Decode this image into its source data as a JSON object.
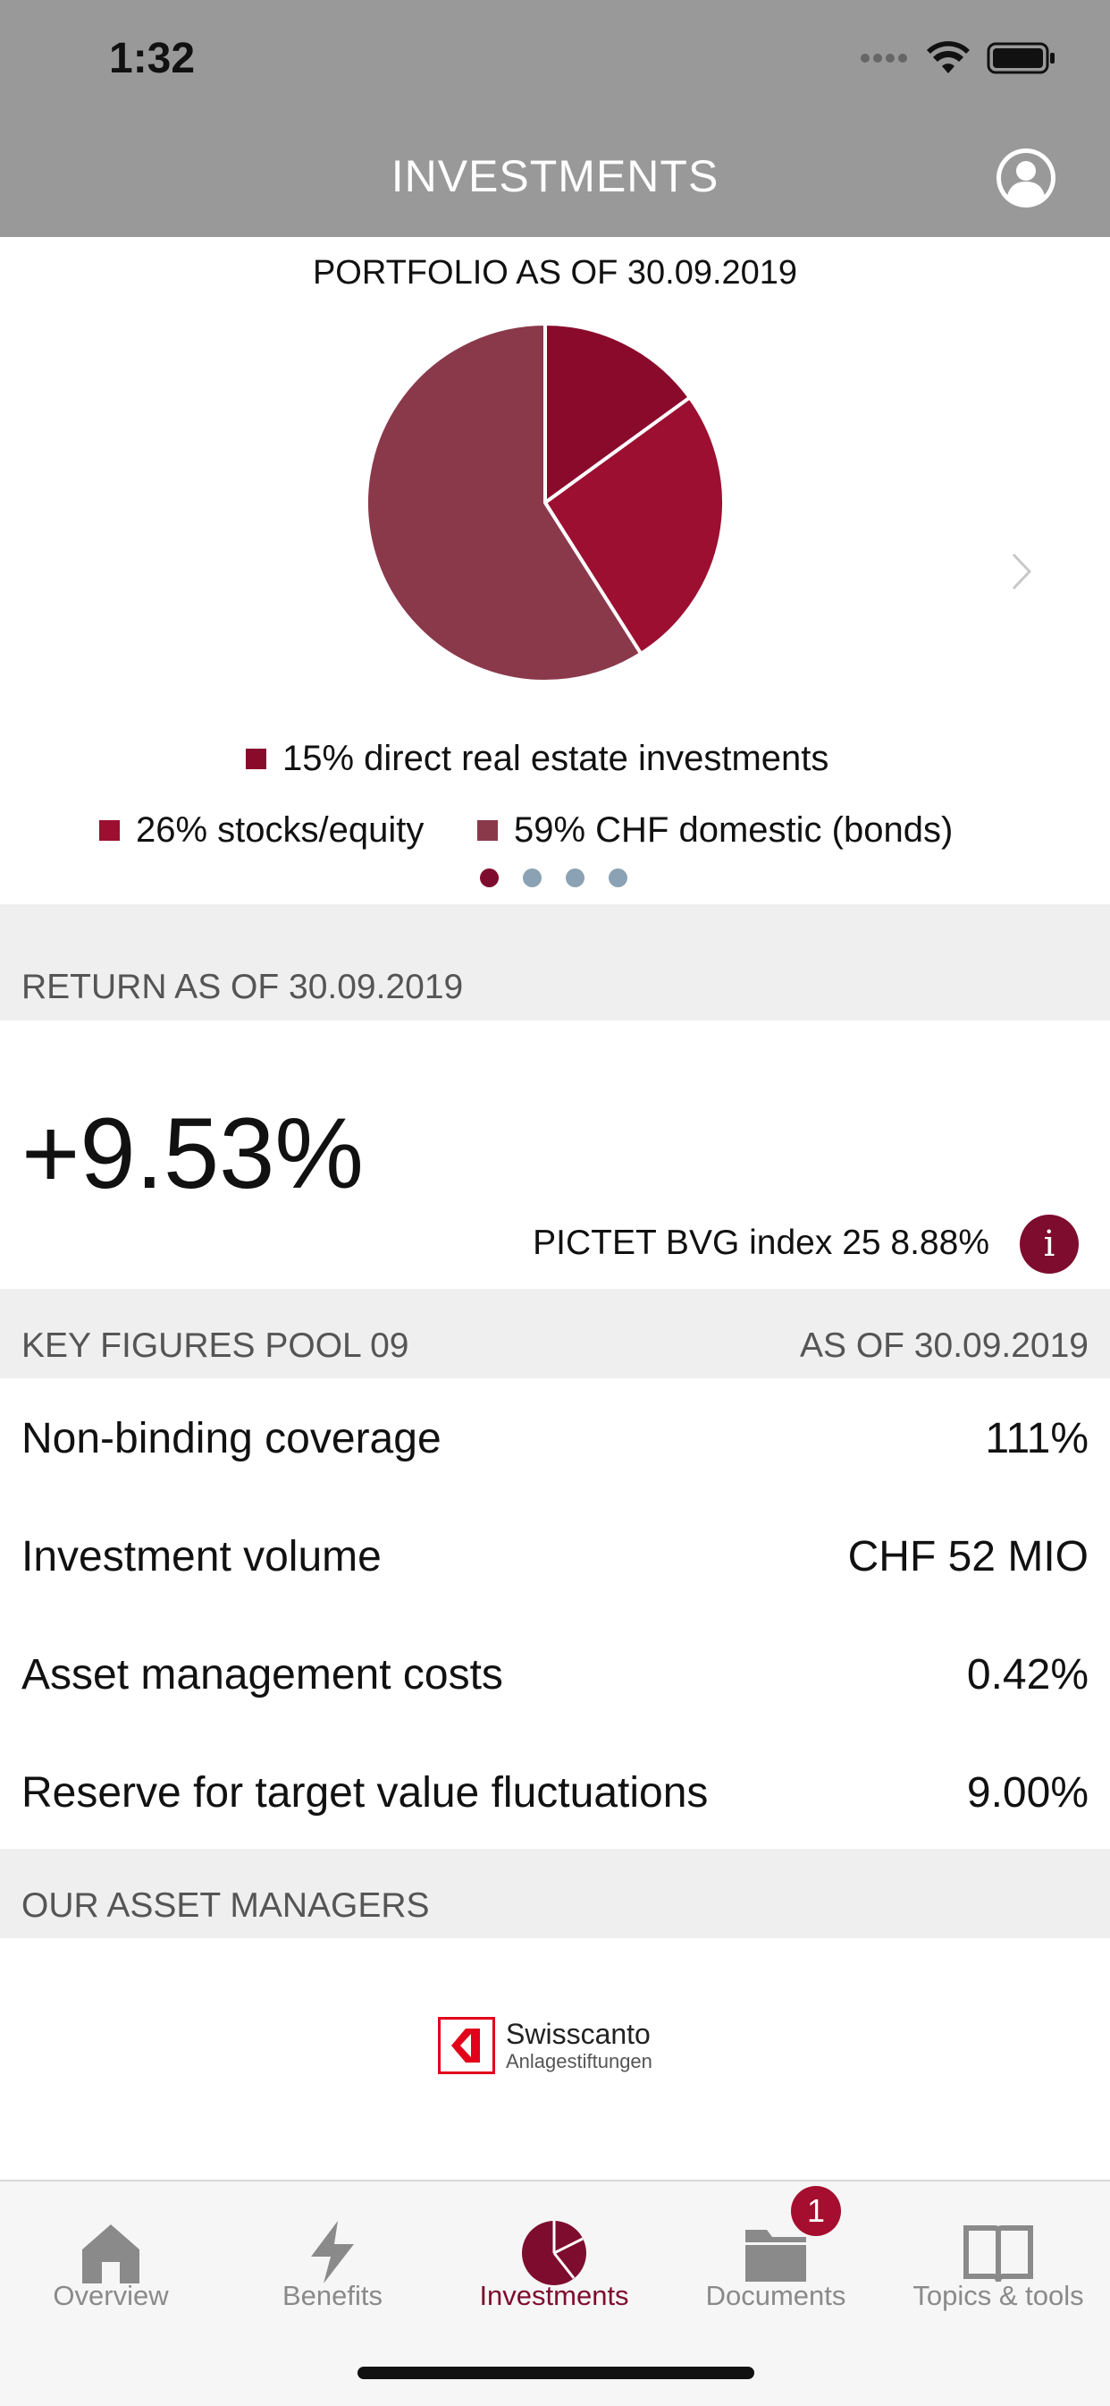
{
  "status_bar": {
    "time": "1:32"
  },
  "header": {
    "title": "INVESTMENTS"
  },
  "portfolio": {
    "title": "PORTFOLIO AS OF 30.09.2019",
    "legend": [
      {
        "label": "15% direct real estate investments",
        "color": "#8a0a2c"
      },
      {
        "label": "26% stocks/equity",
        "color": "#9c0f31"
      },
      {
        "label": "59% CHF domestic (bonds)",
        "color": "#8a394b"
      }
    ],
    "pager_dots_count": 4,
    "pager_active_index": 0
  },
  "chart_data": {
    "type": "pie",
    "categories": [
      "direct real estate investments",
      "stocks/equity",
      "CHF domestic (bonds)"
    ],
    "values": [
      15,
      26,
      59
    ],
    "colors": [
      "#8a0a2c",
      "#9c0f31",
      "#8a394b"
    ]
  },
  "return": {
    "section_title": "RETURN AS OF 30.09.2019",
    "value": "+9.53%",
    "benchmark": "PICTET BVG index 25 8.88%",
    "info_icon": "i"
  },
  "key_figures": {
    "section_title": "KEY FIGURES POOL 09",
    "as_of": "AS OF 30.09.2019",
    "rows": [
      {
        "label": "Non-binding coverage",
        "value": "111%"
      },
      {
        "label": "Investment volume",
        "value": "CHF 52 MIO"
      },
      {
        "label": "Asset management costs",
        "value": "0.42%"
      },
      {
        "label": "Reserve for target value fluctuations",
        "value": "9.00%"
      }
    ]
  },
  "asset_managers": {
    "section_title": "OUR ASSET MANAGERS",
    "logo_name": "Swisscanto",
    "logo_sub": "Anlagestiftungen"
  },
  "tabbar": {
    "tabs": [
      {
        "label": "Overview",
        "icon": "home-icon"
      },
      {
        "label": "Benefits",
        "icon": "lightning-icon"
      },
      {
        "label": "Investments",
        "icon": "pie-chart-icon"
      },
      {
        "label": "Documents",
        "icon": "folder-icon"
      },
      {
        "label": "Topics & tools",
        "icon": "book-icon"
      }
    ],
    "active_index": 2,
    "documents_badge": "1"
  },
  "colors": {
    "accent": "#7e0c2e",
    "header_bg": "#999999",
    "inactive_dot": "#8aa2b3"
  }
}
